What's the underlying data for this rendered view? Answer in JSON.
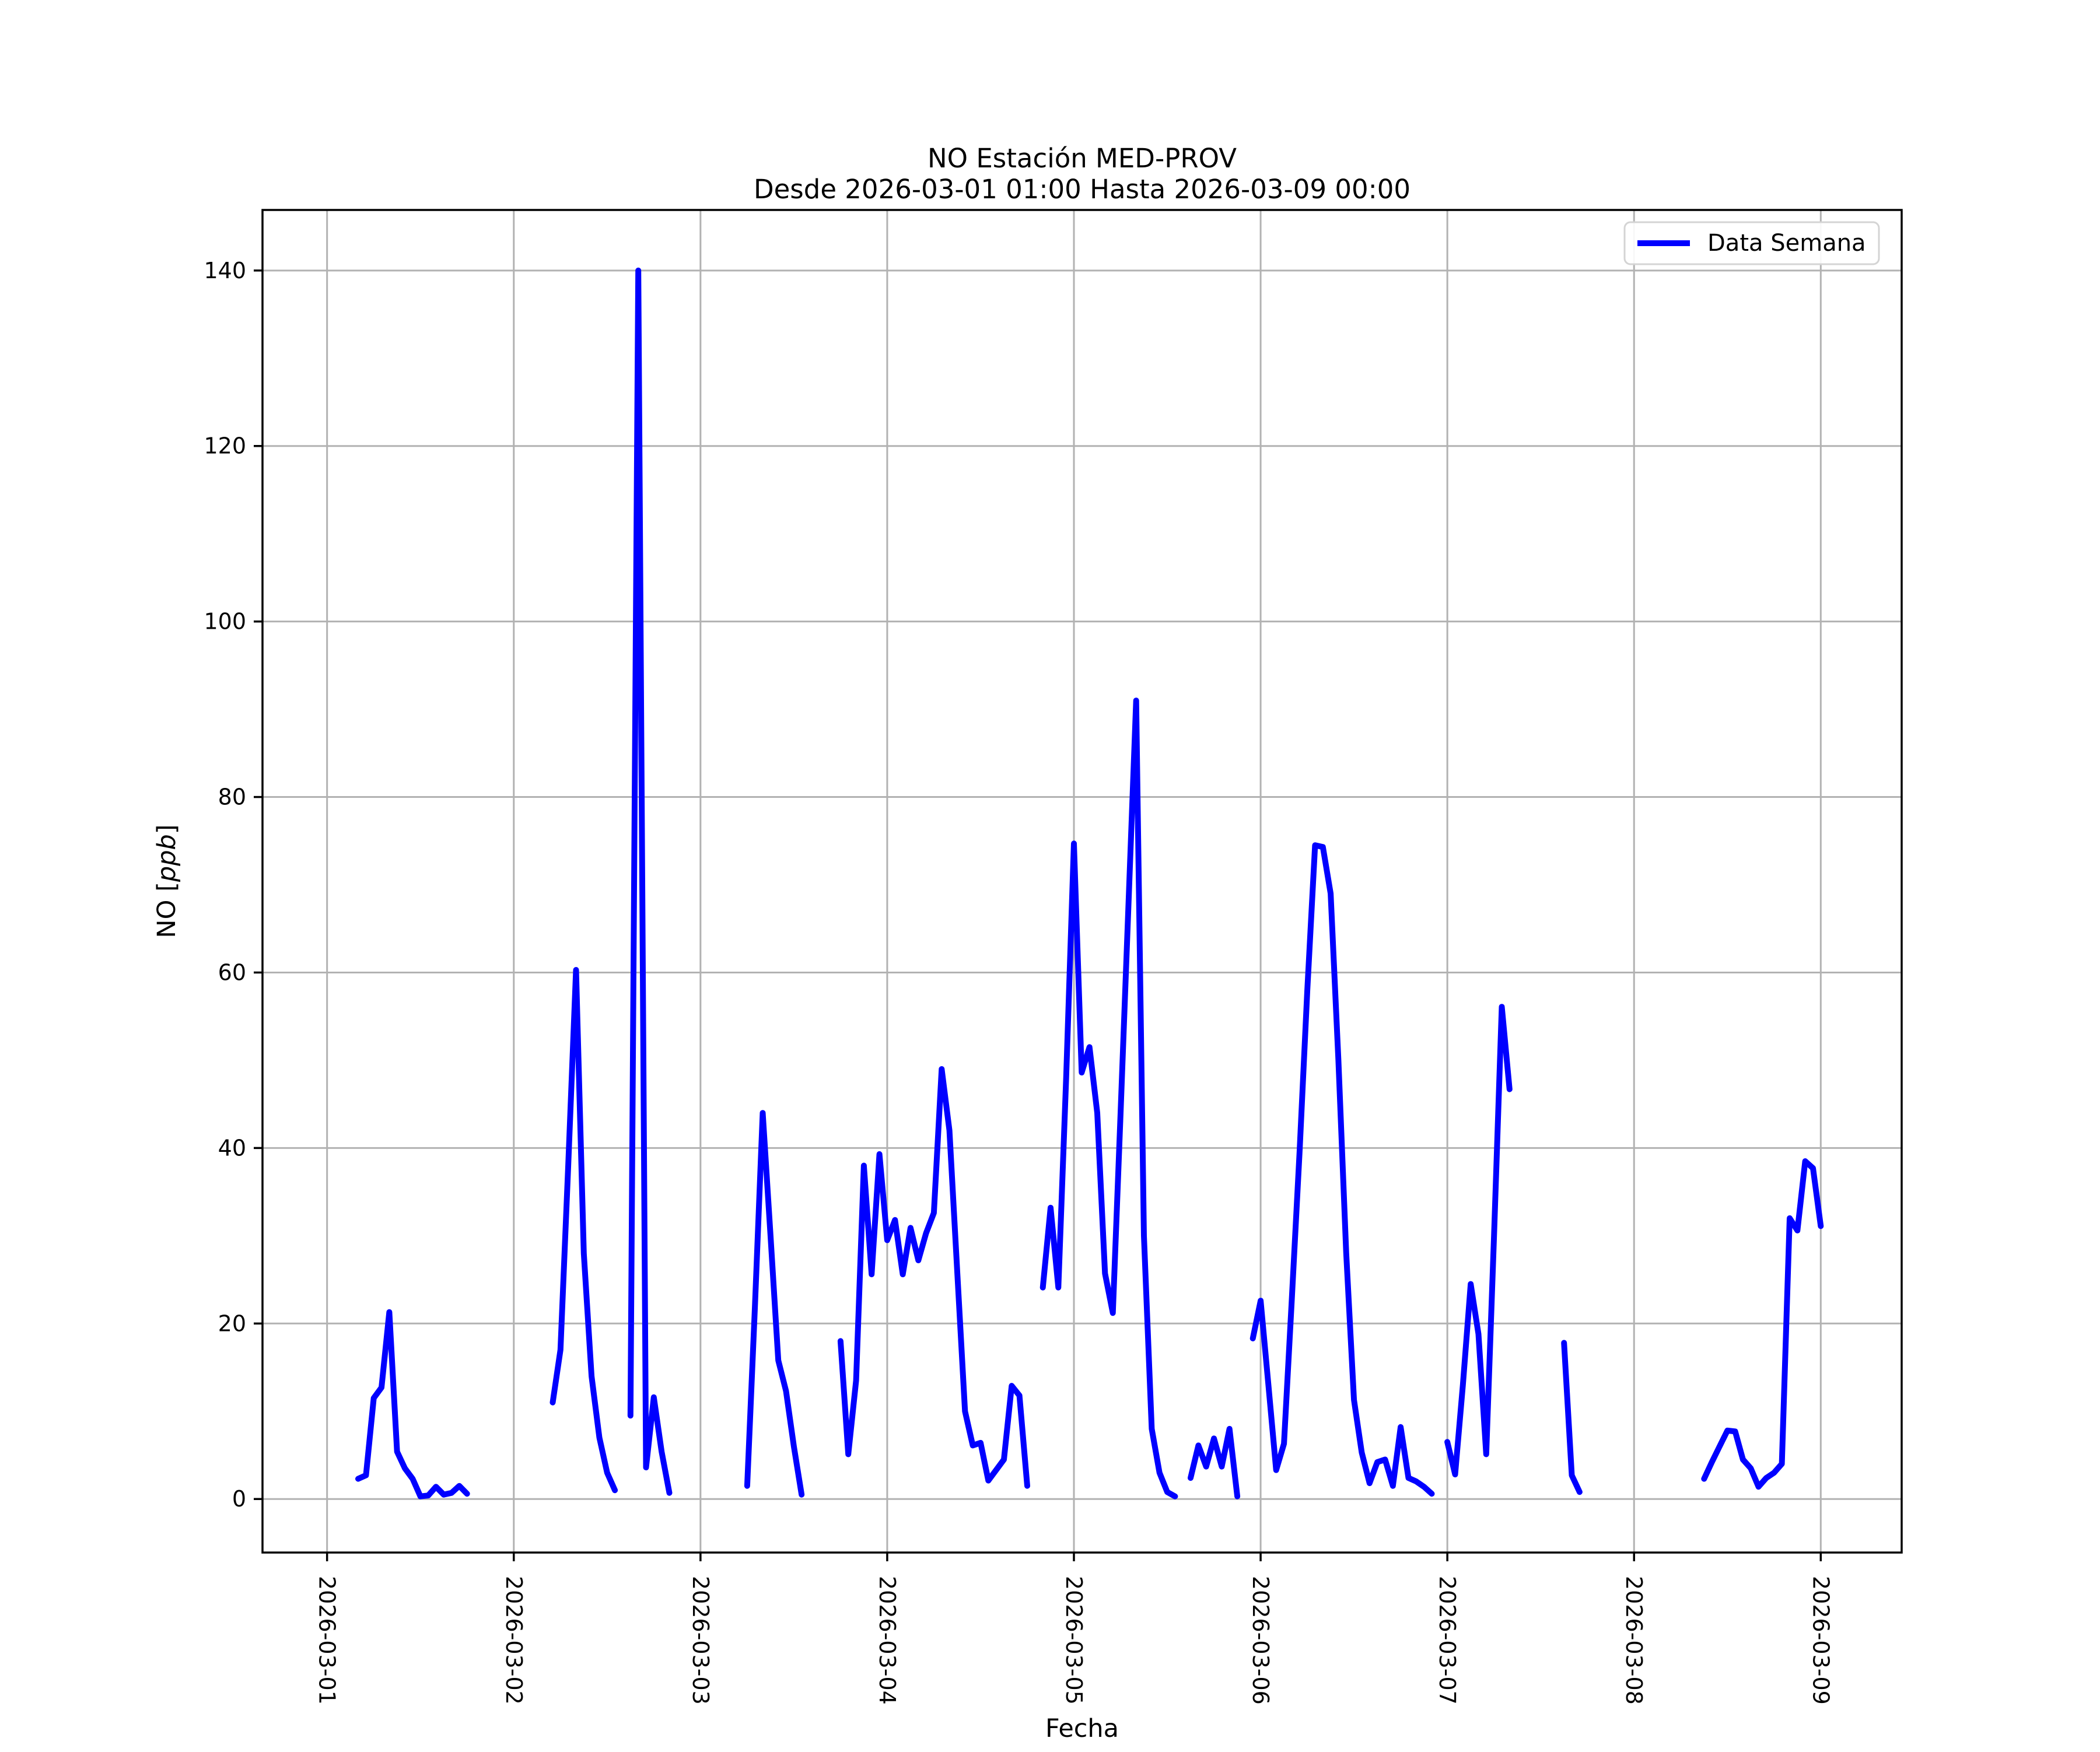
{
  "chart_data": {
    "type": "line",
    "title": "NO Estación MED-PROV",
    "subtitle": "Desde 2026-03-01 01:00 Hasta 2026-03-09 00:00",
    "xlabel": "Fecha",
    "ylabel": "NO [ppb]",
    "ylabel_parts": {
      "prefix": "NO [",
      "italic": "ppb",
      "suffix": "]"
    },
    "legend": {
      "label": "Data Semana",
      "position": "upper right"
    },
    "line_color": "#0000ff",
    "grid": true,
    "grid_color": "#b2b2b2",
    "spine_color": "#000000",
    "x_tick_labels": [
      "2026-03-01",
      "2026-03-02",
      "2026-03-03",
      "2026-03-04",
      "2026-03-05",
      "2026-03-06",
      "2026-03-07",
      "2026-03-08",
      "2026-03-09"
    ],
    "x_tick_hours": [
      0,
      24,
      48,
      72,
      96,
      120,
      144,
      168,
      192
    ],
    "y_ticks": [
      0,
      20,
      40,
      60,
      80,
      100,
      120,
      140
    ],
    "xlim_hours": [
      -8.3,
      202.4
    ],
    "ylim": [
      -6.1,
      146.9
    ],
    "series": {
      "name": "Data Semana",
      "start_hour": 1,
      "hours_step": 1,
      "values": [
        null,
        null,
        null,
        2.3,
        2.7,
        11.5,
        12.7,
        21.3,
        5.4,
        3.5,
        2.3,
        0.3,
        0.4,
        1.4,
        0.5,
        0.7,
        1.5,
        0.6,
        null,
        null,
        null,
        null,
        null,
        null,
        null,
        null,
        null,
        null,
        11,
        17,
        38,
        60.3,
        28,
        14,
        7,
        3,
        1,
        null,
        9.5,
        140,
        3.6,
        11.6,
        5.4,
        0.7,
        null,
        null,
        null,
        null,
        null,
        null,
        null,
        null,
        null,
        1.5,
        22,
        44,
        30,
        15.8,
        12.3,
        6,
        0.5,
        null,
        null,
        null,
        null,
        18,
        5.1,
        13.5,
        38,
        25.6,
        39.3,
        29.5,
        31.8,
        25.6,
        30.9,
        27.2,
        30.3,
        32.6,
        49,
        42,
        26,
        10,
        6.1,
        6.4,
        2.1,
        3.3,
        4.5,
        12.9,
        11.8,
        1.5,
        null,
        24.1,
        33.2,
        24.1,
        48,
        74.7,
        48.6,
        51.5,
        44,
        25.7,
        21.2,
        44,
        67.5,
        91,
        30,
        8,
        3,
        0.8,
        0.3,
        null,
        2.4,
        6.1,
        3.7,
        6.9,
        3.7,
        8,
        0.3,
        null,
        18.3,
        22.6,
        13,
        3.3,
        6.3,
        22.6,
        39.5,
        58,
        74.5,
        74.3,
        69,
        50,
        28,
        11.3,
        5.3,
        1.8,
        4.2,
        4.5,
        1.5,
        8.2,
        2.4,
        2,
        1.4,
        0.6,
        null,
        6.5,
        2.8,
        13,
        24.5,
        18.8,
        5.1,
        30,
        56.1,
        46.7,
        null,
        null,
        null,
        null,
        null,
        null,
        17.8,
        2.7,
        0.8,
        null,
        null,
        null,
        null,
        null,
        null,
        null,
        null,
        null,
        null,
        null,
        null,
        null,
        null,
        null,
        2.3,
        4.2,
        6,
        7.8,
        7.7,
        4.5,
        3.5,
        1.4,
        2.4,
        3,
        4,
        32,
        30.6,
        38.5,
        37.7,
        31.1
      ]
    }
  }
}
